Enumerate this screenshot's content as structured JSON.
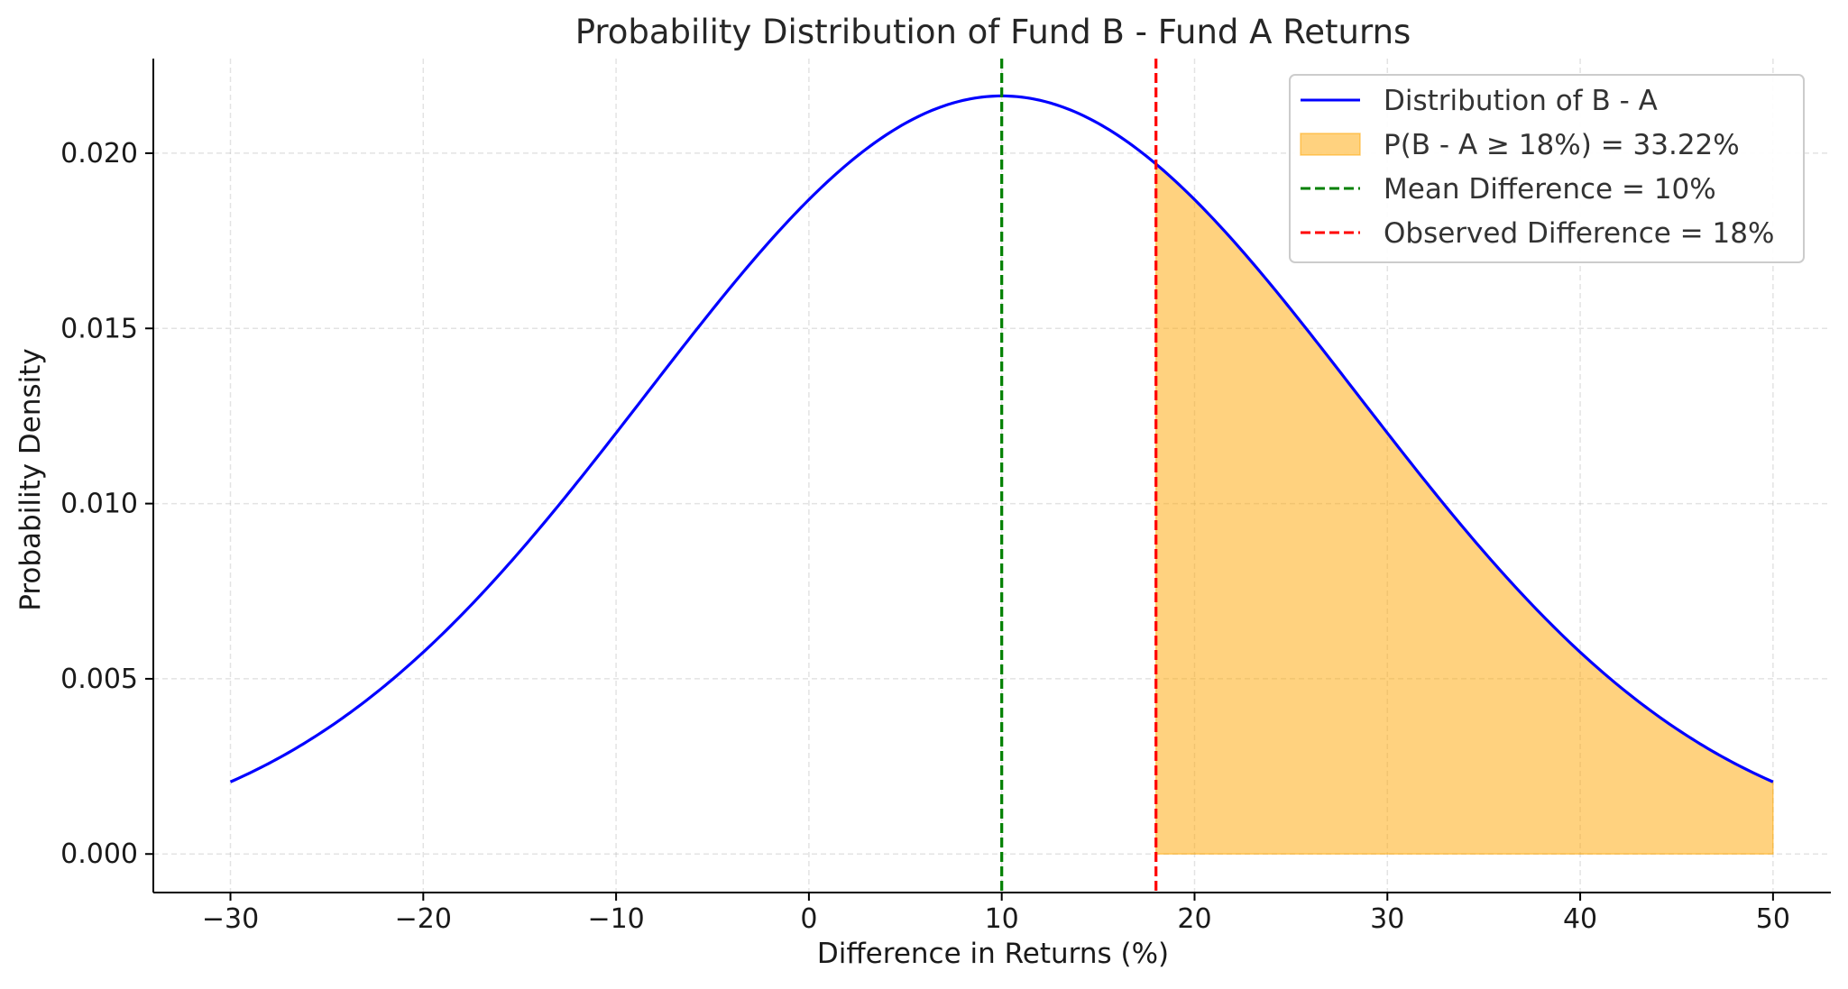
{
  "chart_data": {
    "type": "line",
    "title": "Probability Distribution of Fund B - Fund A Returns",
    "xlabel": "Difference in Returns (%)",
    "ylabel": "Probability Density",
    "xlim": [
      -34,
      53
    ],
    "ylim": [
      -0.0011,
      0.0227
    ],
    "x_ticks": [
      -30,
      -20,
      -10,
      0,
      10,
      20,
      30,
      40,
      50
    ],
    "x_tick_labels": [
      "−30",
      "−20",
      "−10",
      "0",
      "10",
      "20",
      "30",
      "40",
      "50"
    ],
    "y_ticks": [
      0.0,
      0.005,
      0.01,
      0.015,
      0.02
    ],
    "y_tick_labels": [
      "0.000",
      "0.005",
      "0.010",
      "0.015",
      "0.020"
    ],
    "grid": true,
    "legend_position": "top-right",
    "distribution": {
      "name": "Distribution of B - A",
      "mean": 10,
      "std": 18.44,
      "x_range": [
        -30,
        50
      ],
      "color": "#0000ff"
    },
    "shaded_region": {
      "name": "P(B - A ≥ 18%) = 33.22%",
      "x_from": 18,
      "x_to": 50,
      "color": "#ffa500",
      "opacity": 0.5
    },
    "vlines": [
      {
        "name": "Mean Difference = 10%",
        "x": 10,
        "color": "#008000",
        "style": "dashed"
      },
      {
        "name": "Observed Difference = 18%",
        "x": 18,
        "color": "#ff0000",
        "style": "dashed"
      }
    ]
  }
}
